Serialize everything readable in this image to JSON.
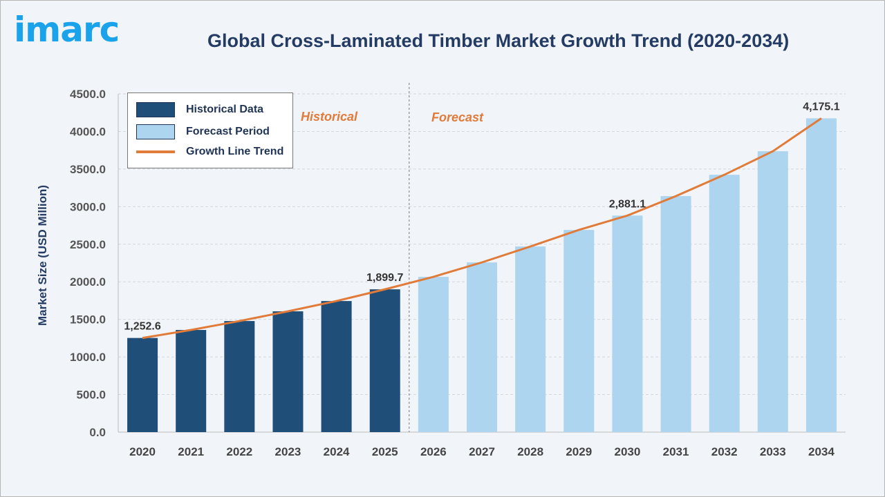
{
  "logo": "imarc",
  "title": "Global Cross-Laminated Timber Market Growth Trend (2020-2034)",
  "legend": {
    "historical": "Historical Data",
    "forecast": "Forecast Period",
    "trend": "Growth Line Trend"
  },
  "annotations": {
    "historical": "Historical",
    "forecast": "Forecast"
  },
  "colors": {
    "historical": "#1f4e79",
    "forecast": "#aed5ef",
    "trend": "#e07b39",
    "title": "#243b63",
    "logo": "#1aa3ea"
  },
  "chart_data": {
    "type": "bar",
    "title": "Global Cross-Laminated Timber Market Growth Trend (2020-2034)",
    "xlabel": "",
    "ylabel": "Market Size (USD Million)",
    "ylim": [
      0,
      4500
    ],
    "yticks": [
      "0.0",
      "500.0",
      "1000.0",
      "1500.0",
      "2000.0",
      "2500.0",
      "3000.0",
      "3500.0",
      "4000.0",
      "4500.0"
    ],
    "grid": true,
    "legend_position": "top-left",
    "categories": [
      "2020",
      "2021",
      "2022",
      "2023",
      "2024",
      "2025",
      "2026",
      "2027",
      "2028",
      "2029",
      "2030",
      "2031",
      "2032",
      "2033",
      "2034"
    ],
    "values": [
      1252.6,
      1359,
      1478,
      1607,
      1744,
      1899.7,
      2066,
      2258,
      2470,
      2690,
      2881.1,
      3140,
      3424,
      3737,
      4175.1
    ],
    "period": [
      "historical",
      "historical",
      "historical",
      "historical",
      "historical",
      "historical",
      "forecast",
      "forecast",
      "forecast",
      "forecast",
      "forecast",
      "forecast",
      "forecast",
      "forecast",
      "forecast"
    ],
    "data_labels": {
      "2020": "1,252.6",
      "2025": "1,899.7",
      "2030": "2,881.1",
      "2034": "4,175.1"
    },
    "trend_line": "values"
  }
}
